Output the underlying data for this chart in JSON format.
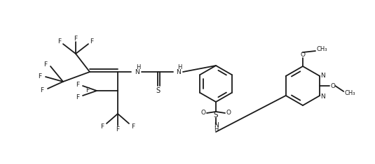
{
  "bg": "#ffffff",
  "lc": "#1a1a1a",
  "lw": 1.3,
  "fs": 6.5,
  "figsize": [
    5.35,
    2.35
  ],
  "dpi": 100,
  "xlim": [
    0,
    535
  ],
  "ylim": [
    0,
    235
  ]
}
